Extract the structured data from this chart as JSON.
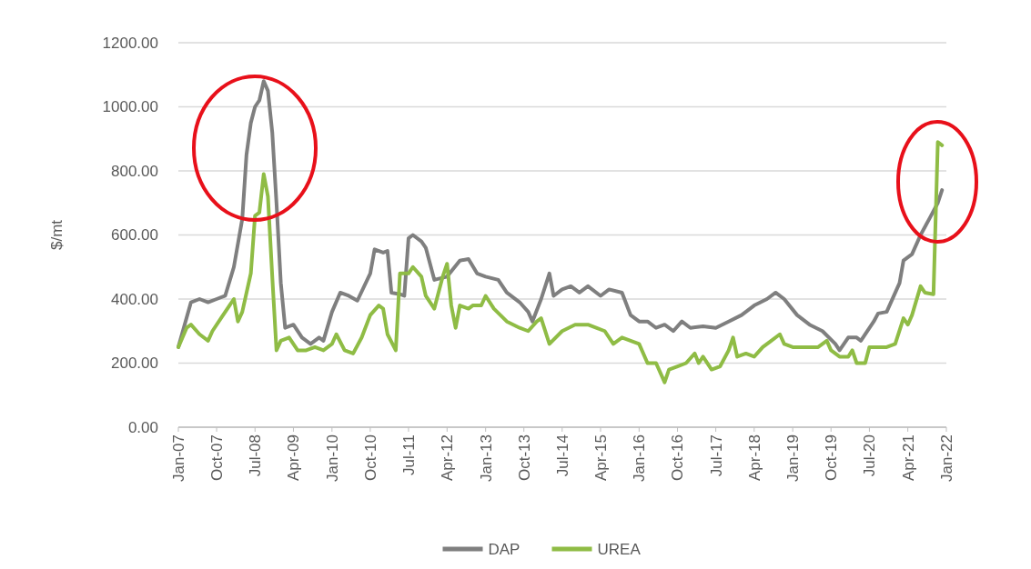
{
  "chart_data": {
    "type": "line",
    "ylabel": "$/mt",
    "xlim": [
      "2007-01",
      "2022-01"
    ],
    "xticks": [
      {
        "value": "2007-01",
        "label": "Jan-07"
      },
      {
        "value": "2007-10",
        "label": "Oct-07"
      },
      {
        "value": "2008-07",
        "label": "Jul-08"
      },
      {
        "value": "2009-04",
        "label": "Apr-09"
      },
      {
        "value": "2010-01",
        "label": "Jan-10"
      },
      {
        "value": "2010-10",
        "label": "Oct-10"
      },
      {
        "value": "2011-07",
        "label": "Jul-11"
      },
      {
        "value": "2012-04",
        "label": "Apr-12"
      },
      {
        "value": "2013-01",
        "label": "Jan-13"
      },
      {
        "value": "2013-10",
        "label": "Oct-13"
      },
      {
        "value": "2014-07",
        "label": "Jul-14"
      },
      {
        "value": "2015-04",
        "label": "Apr-15"
      },
      {
        "value": "2016-01",
        "label": "Jan-16"
      },
      {
        "value": "2016-10",
        "label": "Oct-16"
      },
      {
        "value": "2017-07",
        "label": "Jul-17"
      },
      {
        "value": "2018-04",
        "label": "Apr-18"
      },
      {
        "value": "2019-01",
        "label": "Jan-19"
      },
      {
        "value": "2019-10",
        "label": "Oct-19"
      },
      {
        "value": "2020-07",
        "label": "Jul-20"
      },
      {
        "value": "2021-04",
        "label": "Apr-21"
      },
      {
        "value": "2022-01",
        "label": "Jan-22"
      }
    ],
    "ylim": [
      0,
      1200
    ],
    "yticks": [
      {
        "value": 0,
        "label": "0.00"
      },
      {
        "value": 200,
        "label": "200.00"
      },
      {
        "value": 400,
        "label": "400.00"
      },
      {
        "value": 600,
        "label": "600.00"
      },
      {
        "value": 800,
        "label": "800.00"
      },
      {
        "value": 1000,
        "label": "1000.00"
      },
      {
        "value": 1200,
        "label": "1200.00"
      }
    ],
    "grid": "y",
    "legend": "bottom",
    "marker": "none",
    "line_style": "solid",
    "series": [
      {
        "name": "DAP",
        "color": "#7f7f7f",
        "x": [
          "2007-01",
          "2007-04",
          "2007-06",
          "2007-08",
          "2007-10",
          "2007-12",
          "2008-02",
          "2008-04",
          "2008-05",
          "2008-06",
          "2008-07",
          "2008-08",
          "2008-09",
          "2008-10",
          "2008-11",
          "2008-12",
          "2009-01",
          "2009-02",
          "2009-04",
          "2009-06",
          "2009-08",
          "2009-10",
          "2009-11",
          "2010-01",
          "2010-03",
          "2010-05",
          "2010-07",
          "2010-10",
          "2010-11",
          "2011-01",
          "2011-02",
          "2011-03",
          "2011-05",
          "2011-06",
          "2011-07",
          "2011-08",
          "2011-10",
          "2011-11",
          "2012-01",
          "2012-04",
          "2012-07",
          "2012-09",
          "2012-11",
          "2013-01",
          "2013-04",
          "2013-06",
          "2013-09",
          "2013-11",
          "2013-12",
          "2014-02",
          "2014-04",
          "2014-05",
          "2014-07",
          "2014-09",
          "2014-11",
          "2015-01",
          "2015-04",
          "2015-06",
          "2015-09",
          "2015-11",
          "2016-01",
          "2016-03",
          "2016-05",
          "2016-07",
          "2016-09",
          "2016-11",
          "2017-01",
          "2017-04",
          "2017-07",
          "2017-10",
          "2018-01",
          "2018-04",
          "2018-07",
          "2018-09",
          "2018-11",
          "2019-02",
          "2019-05",
          "2019-08",
          "2019-11",
          "2019-12",
          "2020-02",
          "2020-04",
          "2020-05",
          "2020-08",
          "2020-09",
          "2020-11",
          "2021-02",
          "2021-03",
          "2021-05",
          "2021-07",
          "2021-09",
          "2021-11",
          "2021-12"
        ],
        "values": [
          250,
          390,
          400,
          390,
          400,
          410,
          500,
          650,
          850,
          950,
          1000,
          1020,
          1080,
          1050,
          920,
          700,
          450,
          310,
          320,
          280,
          260,
          280,
          270,
          360,
          420,
          410,
          395,
          480,
          555,
          545,
          550,
          420,
          415,
          410,
          590,
          600,
          580,
          560,
          460,
          470,
          520,
          525,
          480,
          470,
          460,
          420,
          390,
          360,
          330,
          400,
          480,
          410,
          430,
          440,
          420,
          440,
          410,
          430,
          420,
          350,
          330,
          330,
          310,
          320,
          300,
          330,
          310,
          315,
          310,
          330,
          350,
          380,
          400,
          420,
          400,
          350,
          320,
          300,
          260,
          240,
          280,
          280,
          270,
          330,
          355,
          360,
          450,
          520,
          540,
          600,
          650,
          700,
          740
        ]
      },
      {
        "name": "UREA",
        "color": "#8fbc45",
        "x": [
          "2007-01",
          "2007-03",
          "2007-04",
          "2007-06",
          "2007-08",
          "2007-09",
          "2007-11",
          "2008-01",
          "2008-02",
          "2008-03",
          "2008-04",
          "2008-06",
          "2008-07",
          "2008-08",
          "2008-09",
          "2008-10",
          "2008-11",
          "2008-12",
          "2009-01",
          "2009-03",
          "2009-05",
          "2009-07",
          "2009-09",
          "2009-11",
          "2010-01",
          "2010-02",
          "2010-04",
          "2010-06",
          "2010-08",
          "2010-10",
          "2010-12",
          "2011-01",
          "2011-02",
          "2011-04",
          "2011-05",
          "2011-07",
          "2011-08",
          "2011-10",
          "2011-11",
          "2012-01",
          "2012-03",
          "2012-04",
          "2012-05",
          "2012-06",
          "2012-07",
          "2012-09",
          "2012-10",
          "2012-12",
          "2013-01",
          "2013-03",
          "2013-06",
          "2013-09",
          "2013-11",
          "2014-01",
          "2014-02",
          "2014-04",
          "2014-07",
          "2014-10",
          "2015-01",
          "2015-03",
          "2015-05",
          "2015-07",
          "2015-09",
          "2015-11",
          "2016-01",
          "2016-03",
          "2016-05",
          "2016-07",
          "2016-08",
          "2016-10",
          "2016-12",
          "2017-02",
          "2017-03",
          "2017-04",
          "2017-06",
          "2017-08",
          "2017-10",
          "2017-11",
          "2017-12",
          "2018-02",
          "2018-04",
          "2018-06",
          "2018-08",
          "2018-10",
          "2018-11",
          "2019-01",
          "2019-04",
          "2019-07",
          "2019-09",
          "2019-10",
          "2019-12",
          "2020-02",
          "2020-03",
          "2020-04",
          "2020-06",
          "2020-07",
          "2020-09",
          "2020-11",
          "2021-01",
          "2021-03",
          "2021-04",
          "2021-05",
          "2021-07",
          "2021-08",
          "2021-10",
          "2021-11",
          "2021-12"
        ],
        "values": [
          250,
          310,
          320,
          290,
          270,
          300,
          340,
          380,
          400,
          330,
          360,
          480,
          660,
          670,
          790,
          720,
          470,
          240,
          270,
          280,
          240,
          240,
          250,
          240,
          260,
          290,
          240,
          230,
          280,
          350,
          380,
          370,
          290,
          240,
          480,
          480,
          500,
          470,
          410,
          370,
          470,
          510,
          380,
          310,
          380,
          370,
          380,
          380,
          410,
          370,
          330,
          310,
          300,
          330,
          340,
          260,
          300,
          320,
          320,
          310,
          300,
          260,
          280,
          270,
          260,
          200,
          200,
          140,
          180,
          190,
          200,
          230,
          200,
          220,
          180,
          190,
          240,
          280,
          220,
          230,
          220,
          250,
          270,
          290,
          260,
          250,
          250,
          250,
          270,
          240,
          220,
          220,
          240,
          200,
          200,
          250,
          250,
          250,
          260,
          340,
          320,
          350,
          440,
          420,
          415,
          890,
          880
        ]
      }
    ]
  }
}
